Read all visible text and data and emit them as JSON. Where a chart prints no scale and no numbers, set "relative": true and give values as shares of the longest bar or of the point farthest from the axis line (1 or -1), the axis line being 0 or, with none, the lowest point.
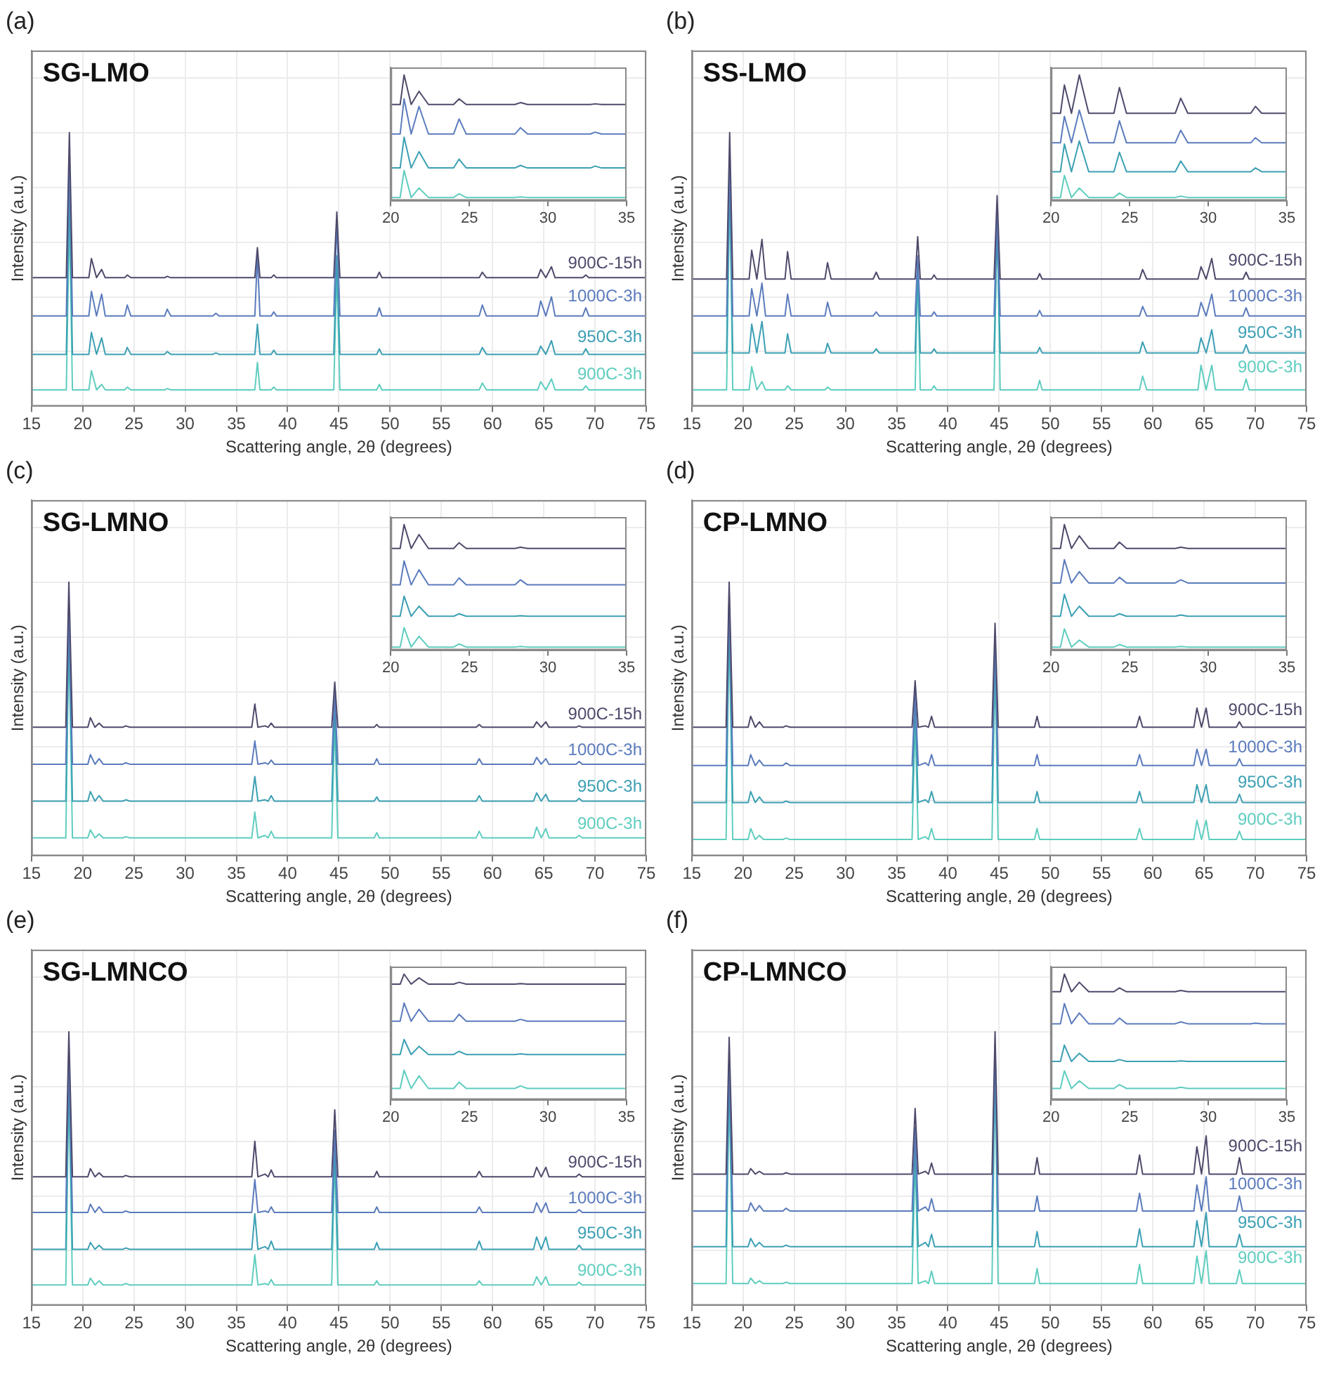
{
  "chart_data": [
    {
      "type": "line",
      "title": "(a)",
      "subtitle": "SG-LMO",
      "xlabel": "Scattering angle, 2θ (degrees)",
      "ylabel": "Intensity (a.u.)",
      "relative": true,
      "grid": true,
      "xlim": [
        15,
        75
      ],
      "xticks": [
        15,
        20,
        25,
        30,
        35,
        40,
        45,
        50,
        55,
        60,
        65,
        70,
        75
      ],
      "x": [
        15,
        18.4,
        18.7,
        19.0,
        20.6,
        20.85,
        21.35,
        21.85,
        22.2,
        24.1,
        24.35,
        24.7,
        28.0,
        28.25,
        28.6,
        32.7,
        33.0,
        33.3,
        36.8,
        37.05,
        37.3,
        38.4,
        38.65,
        38.9,
        44.5,
        44.8,
        45.1,
        48.7,
        48.95,
        49.2,
        58.7,
        59.0,
        59.4,
        64.4,
        64.7,
        65.2,
        65.75,
        66.1,
        68.8,
        69.1,
        69.4,
        75
      ],
      "series": [
        {
          "name": "900C-15h",
          "color": "#4d4a6b",
          "values": [
            0.47,
            0.47,
            1,
            0.47,
            0.47,
            0.54,
            0.47,
            0.5,
            0.47,
            0.47,
            0.48,
            0.47,
            0.47,
            0.475,
            0.47,
            0.47,
            0.47,
            0.47,
            0.47,
            0.58,
            0.47,
            0.47,
            0.48,
            0.47,
            0.47,
            0.71,
            0.47,
            0.47,
            0.49,
            0.47,
            0.47,
            0.49,
            0.47,
            0.47,
            0.5,
            0.47,
            0.51,
            0.47,
            0.47,
            0.48,
            0.47,
            0.47
          ]
        },
        {
          "name": "1000C-3h",
          "color": "#5b7bbd",
          "values": [
            0.33,
            0.33,
            0.9,
            0.33,
            0.33,
            0.42,
            0.33,
            0.41,
            0.33,
            0.33,
            0.37,
            0.33,
            0.33,
            0.355,
            0.33,
            0.33,
            0.34,
            0.33,
            0.33,
            0.55,
            0.33,
            0.33,
            0.345,
            0.33,
            0.33,
            0.68,
            0.33,
            0.33,
            0.36,
            0.33,
            0.33,
            0.37,
            0.33,
            0.33,
            0.385,
            0.33,
            0.4,
            0.33,
            0.33,
            0.36,
            0.33,
            0.33
          ]
        },
        {
          "name": "950C-3h",
          "color": "#3b9fb3",
          "values": [
            0.19,
            0.19,
            0.8,
            0.19,
            0.19,
            0.27,
            0.19,
            0.25,
            0.19,
            0.19,
            0.215,
            0.19,
            0.19,
            0.2,
            0.19,
            0.19,
            0.195,
            0.19,
            0.19,
            0.3,
            0.19,
            0.19,
            0.205,
            0.19,
            0.19,
            0.55,
            0.19,
            0.19,
            0.21,
            0.19,
            0.19,
            0.215,
            0.19,
            0.19,
            0.22,
            0.19,
            0.24,
            0.19,
            0.19,
            0.21,
            0.19,
            0.19
          ]
        },
        {
          "name": "900C-3h",
          "color": "#5fcdbf",
          "values": [
            0.06,
            0.06,
            0.7,
            0.06,
            0.06,
            0.13,
            0.06,
            0.08,
            0.06,
            0.06,
            0.07,
            0.06,
            0.06,
            0.065,
            0.06,
            0.06,
            0.06,
            0.06,
            0.06,
            0.16,
            0.06,
            0.06,
            0.07,
            0.06,
            0.06,
            0.5,
            0.06,
            0.06,
            0.08,
            0.06,
            0.06,
            0.085,
            0.06,
            0.06,
            0.09,
            0.06,
            0.1,
            0.06,
            0.06,
            0.075,
            0.06,
            0.06
          ]
        }
      ]
    },
    {
      "type": "line",
      "relative": true,
      "xlim": [
        20,
        35
      ],
      "xticks": [
        20,
        25,
        30,
        35
      ],
      "x": [
        20,
        20.6,
        20.85,
        21.3,
        21.8,
        22.4,
        24.0,
        24.35,
        24.8,
        27.9,
        28.25,
        28.7,
        32.7,
        33.0,
        33.4,
        35
      ],
      "series": [
        {
          "color": "#4d4a6b",
          "values": [
            0.765,
            0.765,
            1,
            0.765,
            0.87,
            0.765,
            0.765,
            0.81,
            0.765,
            0.765,
            0.78,
            0.765,
            0.765,
            0.77,
            0.765,
            0.765
          ]
        },
        {
          "color": "#5b7bbd",
          "values": [
            0.53,
            0.53,
            0.81,
            0.53,
            0.75,
            0.53,
            0.53,
            0.65,
            0.53,
            0.53,
            0.58,
            0.53,
            0.53,
            0.545,
            0.53,
            0.53
          ]
        },
        {
          "color": "#3b9fb3",
          "values": [
            0.26,
            0.26,
            0.505,
            0.26,
            0.39,
            0.26,
            0.26,
            0.33,
            0.26,
            0.26,
            0.28,
            0.26,
            0.26,
            0.275,
            0.26,
            0.26
          ]
        },
        {
          "color": "#5fcdbf",
          "values": [
            0.025,
            0.025,
            0.24,
            0.025,
            0.1,
            0.025,
            0.025,
            0.055,
            0.025,
            0.025,
            0.03,
            0.025,
            0.025,
            0.025,
            0.025,
            0.025
          ]
        }
      ]
    },
    {
      "type": "line",
      "title": "(b)",
      "subtitle": "SS-LMO",
      "xlabel": "Scattering angle, 2θ (degrees)",
      "ylabel": "Intensity (a.u.)",
      "relative": true,
      "grid": true,
      "xlim": [
        15,
        75
      ],
      "xticks": [
        15,
        20,
        25,
        30,
        35,
        40,
        45,
        50,
        55,
        60,
        65,
        70,
        75
      ],
      "x": [
        15,
        18.4,
        18.7,
        19.0,
        20.6,
        20.85,
        21.35,
        21.85,
        22.2,
        24.1,
        24.35,
        24.7,
        28.0,
        28.25,
        28.6,
        32.7,
        33.0,
        33.3,
        36.8,
        37.05,
        37.3,
        38.4,
        38.65,
        38.9,
        44.5,
        44.8,
        45.1,
        48.7,
        48.95,
        49.2,
        58.7,
        59.0,
        59.4,
        64.4,
        64.7,
        65.2,
        65.75,
        66.1,
        68.8,
        69.1,
        69.4,
        75
      ],
      "series": [
        {
          "name": "900C-15h",
          "color": "#4d4a6b",
          "values": [
            0.465,
            0.465,
            1,
            0.465,
            0.465,
            0.57,
            0.465,
            0.61,
            0.465,
            0.465,
            0.565,
            0.465,
            0.465,
            0.525,
            0.465,
            0.465,
            0.49,
            0.465,
            0.465,
            0.62,
            0.465,
            0.465,
            0.48,
            0.465,
            0.465,
            0.77,
            0.465,
            0.465,
            0.485,
            0.465,
            0.465,
            0.5,
            0.465,
            0.465,
            0.51,
            0.465,
            0.54,
            0.465,
            0.465,
            0.49,
            0.465,
            0.465
          ]
        },
        {
          "name": "1000C-3h",
          "color": "#5b7bbd",
          "values": [
            0.33,
            0.33,
            0.9,
            0.33,
            0.33,
            0.43,
            0.33,
            0.45,
            0.33,
            0.33,
            0.41,
            0.33,
            0.33,
            0.38,
            0.33,
            0.33,
            0.345,
            0.33,
            0.33,
            0.55,
            0.33,
            0.33,
            0.345,
            0.33,
            0.33,
            0.7,
            0.33,
            0.33,
            0.35,
            0.33,
            0.33,
            0.365,
            0.33,
            0.33,
            0.38,
            0.33,
            0.41,
            0.33,
            0.33,
            0.36,
            0.33,
            0.33
          ]
        },
        {
          "name": "950C-3h",
          "color": "#3b9fb3",
          "values": [
            0.195,
            0.195,
            0.85,
            0.195,
            0.195,
            0.3,
            0.195,
            0.31,
            0.195,
            0.195,
            0.265,
            0.195,
            0.195,
            0.23,
            0.195,
            0.195,
            0.21,
            0.195,
            0.195,
            0.5,
            0.195,
            0.195,
            0.21,
            0.195,
            0.195,
            0.65,
            0.195,
            0.195,
            0.215,
            0.195,
            0.195,
            0.235,
            0.195,
            0.195,
            0.25,
            0.195,
            0.28,
            0.195,
            0.195,
            0.225,
            0.195,
            0.195
          ]
        },
        {
          "name": "900C-3h",
          "color": "#5fcdbf",
          "values": [
            0.06,
            0.06,
            0.8,
            0.06,
            0.06,
            0.145,
            0.06,
            0.09,
            0.06,
            0.06,
            0.075,
            0.06,
            0.06,
            0.07,
            0.06,
            0.06,
            0.06,
            0.06,
            0.06,
            0.5,
            0.06,
            0.06,
            0.075,
            0.06,
            0.06,
            0.7,
            0.06,
            0.06,
            0.095,
            0.06,
            0.06,
            0.11,
            0.06,
            0.06,
            0.15,
            0.06,
            0.15,
            0.06,
            0.06,
            0.1,
            0.06,
            0.06
          ]
        }
      ]
    },
    {
      "type": "line",
      "relative": true,
      "xlim": [
        20,
        35
      ],
      "xticks": [
        20,
        25,
        30,
        35
      ],
      "x": [
        20,
        20.6,
        20.85,
        21.3,
        21.8,
        22.4,
        24.0,
        24.35,
        24.8,
        27.9,
        28.25,
        28.7,
        32.7,
        33.0,
        33.4,
        35
      ],
      "series": [
        {
          "color": "#4d4a6b",
          "values": [
            0.695,
            0.695,
            0.92,
            0.695,
            1,
            0.695,
            0.695,
            0.9,
            0.695,
            0.695,
            0.815,
            0.695,
            0.695,
            0.75,
            0.695,
            0.695
          ]
        },
        {
          "color": "#5b7bbd",
          "values": [
            0.46,
            0.46,
            0.67,
            0.46,
            0.72,
            0.46,
            0.46,
            0.635,
            0.46,
            0.46,
            0.56,
            0.46,
            0.46,
            0.5,
            0.46,
            0.46
          ]
        },
        {
          "color": "#3b9fb3",
          "values": [
            0.23,
            0.23,
            0.45,
            0.23,
            0.475,
            0.23,
            0.23,
            0.385,
            0.23,
            0.23,
            0.315,
            0.23,
            0.23,
            0.26,
            0.23,
            0.23
          ]
        },
        {
          "color": "#5fcdbf",
          "values": [
            0.025,
            0.025,
            0.2,
            0.025,
            0.1,
            0.025,
            0.025,
            0.06,
            0.025,
            0.025,
            0.035,
            0.025,
            0.025,
            0.025,
            0.025,
            0.025
          ]
        }
      ]
    },
    {
      "type": "line",
      "title": "(c)",
      "subtitle": "SG-LMNO",
      "xlabel": "Scattering angle, 2θ (degrees)",
      "ylabel": "Intensity (a.u.)",
      "relative": true,
      "grid": true,
      "xlim": [
        15,
        75
      ],
      "xticks": [
        15,
        20,
        25,
        30,
        35,
        40,
        45,
        50,
        55,
        60,
        65,
        70,
        75
      ],
      "x": [
        15,
        18.35,
        18.65,
        19.0,
        20.5,
        20.75,
        21.2,
        21.6,
        22.0,
        23.9,
        24.2,
        24.6,
        36.5,
        36.8,
        37.1,
        37.8,
        38.1,
        38.4,
        38.7,
        44.3,
        44.6,
        44.9,
        48.45,
        48.7,
        48.95,
        58.4,
        58.7,
        59.0,
        64.0,
        64.3,
        64.75,
        65.2,
        65.5,
        68.15,
        68.45,
        68.75,
        75
      ],
      "series": [
        {
          "name": "900C-15h",
          "color": "#4d4a6b",
          "values": [
            0.47,
            0.47,
            1,
            0.47,
            0.47,
            0.505,
            0.47,
            0.485,
            0.47,
            0.47,
            0.475,
            0.47,
            0.47,
            0.555,
            0.47,
            0.475,
            0.47,
            0.485,
            0.47,
            0.47,
            0.635,
            0.47,
            0.47,
            0.48,
            0.47,
            0.47,
            0.48,
            0.47,
            0.47,
            0.49,
            0.47,
            0.49,
            0.47,
            0.47,
            0.475,
            0.47,
            0.47
          ]
        },
        {
          "name": "1000C-3h",
          "color": "#5b7bbd",
          "values": [
            0.335,
            0.335,
            0.9,
            0.335,
            0.335,
            0.37,
            0.335,
            0.355,
            0.335,
            0.335,
            0.34,
            0.335,
            0.335,
            0.42,
            0.335,
            0.34,
            0.335,
            0.35,
            0.335,
            0.335,
            0.6,
            0.335,
            0.335,
            0.355,
            0.335,
            0.335,
            0.355,
            0.335,
            0.335,
            0.36,
            0.335,
            0.355,
            0.335,
            0.335,
            0.345,
            0.335,
            0.335
          ]
        },
        {
          "name": "950C-3h",
          "color": "#3b9fb3",
          "values": [
            0.2,
            0.2,
            0.85,
            0.2,
            0.2,
            0.235,
            0.2,
            0.22,
            0.2,
            0.2,
            0.205,
            0.2,
            0.2,
            0.29,
            0.2,
            0.205,
            0.2,
            0.22,
            0.2,
            0.2,
            0.55,
            0.2,
            0.2,
            0.215,
            0.2,
            0.2,
            0.22,
            0.2,
            0.2,
            0.23,
            0.2,
            0.225,
            0.2,
            0.2,
            0.21,
            0.2,
            0.2
          ]
        },
        {
          "name": "900C-3h",
          "color": "#5fcdbf",
          "values": [
            0.066,
            0.066,
            0.8,
            0.066,
            0.066,
            0.095,
            0.066,
            0.08,
            0.066,
            0.066,
            0.07,
            0.066,
            0.066,
            0.16,
            0.066,
            0.075,
            0.066,
            0.09,
            0.066,
            0.066,
            0.5,
            0.066,
            0.066,
            0.085,
            0.066,
            0.066,
            0.09,
            0.066,
            0.066,
            0.105,
            0.066,
            0.1,
            0.066,
            0.066,
            0.075,
            0.066,
            0.066
          ]
        }
      ]
    },
    {
      "type": "line",
      "relative": true,
      "xlim": [
        20,
        35
      ],
      "xticks": [
        20,
        25,
        30,
        35
      ],
      "x": [
        20,
        20.6,
        20.85,
        21.3,
        21.8,
        22.4,
        24.0,
        24.35,
        24.8,
        27.9,
        28.25,
        28.7,
        32.7,
        33.0,
        33.4,
        35
      ],
      "series": [
        {
          "color": "#4d4a6b",
          "values": [
            0.81,
            0.81,
            1,
            0.81,
            0.92,
            0.81,
            0.81,
            0.855,
            0.81,
            0.81,
            0.82,
            0.81,
            0.81,
            0.81,
            0.81,
            0.81
          ]
        },
        {
          "color": "#5b7bbd",
          "values": [
            0.52,
            0.52,
            0.71,
            0.52,
            0.64,
            0.52,
            0.52,
            0.575,
            0.52,
            0.52,
            0.56,
            0.52,
            0.52,
            0.52,
            0.52,
            0.52
          ]
        },
        {
          "color": "#3b9fb3",
          "values": [
            0.27,
            0.27,
            0.43,
            0.27,
            0.35,
            0.27,
            0.27,
            0.29,
            0.27,
            0.27,
            0.275,
            0.27,
            0.27,
            0.27,
            0.27,
            0.27
          ]
        },
        {
          "color": "#5fcdbf",
          "values": [
            0.025,
            0.025,
            0.18,
            0.025,
            0.11,
            0.025,
            0.025,
            0.05,
            0.025,
            0.025,
            0.03,
            0.025,
            0.025,
            0.025,
            0.025,
            0.025
          ]
        }
      ]
    },
    {
      "type": "line",
      "title": "(d)",
      "subtitle": "CP-LMNO",
      "xlabel": "Scattering angle, 2θ (degrees)",
      "ylabel": "Intensity (a.u.)",
      "relative": true,
      "grid": true,
      "xlim": [
        15,
        75
      ],
      "xticks": [
        15,
        20,
        25,
        30,
        35,
        40,
        45,
        50,
        55,
        60,
        65,
        70,
        75
      ],
      "x": [
        15,
        18.35,
        18.65,
        19.0,
        20.5,
        20.75,
        21.2,
        21.6,
        22.0,
        23.9,
        24.2,
        24.6,
        36.5,
        36.8,
        37.1,
        37.8,
        38.1,
        38.4,
        38.7,
        44.3,
        44.6,
        44.9,
        48.45,
        48.7,
        48.95,
        58.4,
        58.7,
        59.0,
        64.0,
        64.3,
        64.75,
        65.2,
        65.5,
        68.15,
        68.45,
        68.75,
        75
      ],
      "series": [
        {
          "name": "900C-15h",
          "color": "#4d4a6b",
          "values": [
            0.47,
            0.47,
            1,
            0.47,
            0.47,
            0.51,
            0.47,
            0.49,
            0.47,
            0.47,
            0.475,
            0.47,
            0.47,
            0.64,
            0.47,
            0.475,
            0.47,
            0.51,
            0.47,
            0.47,
            0.85,
            0.47,
            0.47,
            0.51,
            0.47,
            0.47,
            0.51,
            0.47,
            0.47,
            0.54,
            0.47,
            0.54,
            0.47,
            0.47,
            0.49,
            0.47,
            0.47
          ]
        },
        {
          "name": "1000C-3h",
          "color": "#5b7bbd",
          "values": [
            0.33,
            0.33,
            0.95,
            0.33,
            0.33,
            0.37,
            0.33,
            0.35,
            0.33,
            0.33,
            0.34,
            0.33,
            0.33,
            0.6,
            0.33,
            0.34,
            0.33,
            0.37,
            0.33,
            0.33,
            0.8,
            0.33,
            0.33,
            0.37,
            0.33,
            0.33,
            0.37,
            0.33,
            0.33,
            0.39,
            0.33,
            0.39,
            0.33,
            0.33,
            0.355,
            0.33,
            0.33
          ]
        },
        {
          "name": "950C-3h",
          "color": "#3b9fb3",
          "values": [
            0.195,
            0.195,
            0.9,
            0.195,
            0.195,
            0.235,
            0.195,
            0.215,
            0.195,
            0.195,
            0.2,
            0.195,
            0.195,
            0.55,
            0.195,
            0.205,
            0.195,
            0.235,
            0.195,
            0.195,
            0.75,
            0.195,
            0.195,
            0.235,
            0.195,
            0.195,
            0.235,
            0.195,
            0.195,
            0.26,
            0.195,
            0.26,
            0.195,
            0.195,
            0.225,
            0.195,
            0.195
          ]
        },
        {
          "name": "900C-3h",
          "color": "#5fcdbf",
          "values": [
            0.06,
            0.06,
            0.85,
            0.06,
            0.06,
            0.1,
            0.06,
            0.075,
            0.06,
            0.06,
            0.065,
            0.06,
            0.06,
            0.5,
            0.06,
            0.07,
            0.06,
            0.1,
            0.06,
            0.06,
            0.7,
            0.06,
            0.06,
            0.1,
            0.06,
            0.06,
            0.1,
            0.06,
            0.06,
            0.13,
            0.06,
            0.13,
            0.06,
            0.06,
            0.09,
            0.06,
            0.06
          ]
        }
      ]
    },
    {
      "type": "line",
      "relative": true,
      "xlim": [
        20,
        35
      ],
      "xticks": [
        20,
        25,
        30,
        35
      ],
      "x": [
        20,
        20.6,
        20.85,
        21.3,
        21.8,
        22.4,
        24.0,
        24.35,
        24.8,
        27.9,
        28.25,
        28.7,
        32.7,
        33.0,
        33.4,
        35
      ],
      "series": [
        {
          "color": "#4d4a6b",
          "values": [
            0.81,
            0.81,
            1,
            0.81,
            0.91,
            0.81,
            0.81,
            0.86,
            0.81,
            0.81,
            0.82,
            0.81,
            0.81,
            0.81,
            0.81,
            0.81
          ]
        },
        {
          "color": "#5b7bbd",
          "values": [
            0.535,
            0.535,
            0.72,
            0.535,
            0.625,
            0.535,
            0.535,
            0.58,
            0.535,
            0.535,
            0.56,
            0.535,
            0.535,
            0.535,
            0.535,
            0.535
          ]
        },
        {
          "color": "#3b9fb3",
          "values": [
            0.27,
            0.27,
            0.445,
            0.27,
            0.35,
            0.27,
            0.27,
            0.29,
            0.27,
            0.27,
            0.28,
            0.27,
            0.27,
            0.27,
            0.27,
            0.27
          ]
        },
        {
          "color": "#5fcdbf",
          "values": [
            0.025,
            0.025,
            0.17,
            0.025,
            0.08,
            0.025,
            0.025,
            0.045,
            0.025,
            0.025,
            0.03,
            0.025,
            0.025,
            0.025,
            0.025,
            0.025
          ]
        }
      ]
    },
    {
      "type": "line",
      "title": "(e)",
      "subtitle": "SG-LMNCO",
      "xlabel": "Scattering angle, 2θ (degrees)",
      "ylabel": "Intensity (a.u.)",
      "relative": true,
      "grid": true,
      "xlim": [
        15,
        75
      ],
      "xticks": [
        15,
        20,
        25,
        30,
        35,
        40,
        45,
        50,
        55,
        60,
        65,
        70,
        75
      ],
      "x": [
        15,
        18.35,
        18.65,
        19.0,
        20.5,
        20.75,
        21.2,
        21.6,
        22.0,
        23.9,
        24.2,
        24.6,
        36.5,
        36.8,
        37.1,
        37.8,
        38.1,
        38.4,
        38.7,
        44.3,
        44.6,
        44.9,
        48.45,
        48.7,
        48.95,
        58.4,
        58.7,
        59.0,
        64.0,
        64.3,
        64.75,
        65.2,
        65.5,
        68.15,
        68.45,
        68.75,
        75
      ],
      "series": [
        {
          "name": "900C-15h",
          "color": "#4d4a6b",
          "values": [
            0.47,
            0.47,
            1,
            0.47,
            0.47,
            0.5,
            0.47,
            0.485,
            0.47,
            0.47,
            0.475,
            0.47,
            0.47,
            0.6,
            0.47,
            0.48,
            0.47,
            0.495,
            0.47,
            0.47,
            0.715,
            0.47,
            0.47,
            0.49,
            0.47,
            0.47,
            0.49,
            0.47,
            0.47,
            0.505,
            0.47,
            0.505,
            0.47,
            0.47,
            0.48,
            0.47,
            0.47
          ]
        },
        {
          "name": "1000C-3h",
          "color": "#5b7bbd",
          "values": [
            0.34,
            0.34,
            0.9,
            0.34,
            0.34,
            0.37,
            0.34,
            0.36,
            0.34,
            0.34,
            0.345,
            0.34,
            0.34,
            0.46,
            0.34,
            0.345,
            0.34,
            0.36,
            0.34,
            0.34,
            0.64,
            0.34,
            0.34,
            0.36,
            0.34,
            0.34,
            0.36,
            0.34,
            0.34,
            0.375,
            0.34,
            0.375,
            0.34,
            0.34,
            0.35,
            0.34,
            0.34
          ]
        },
        {
          "name": "950C-3h",
          "color": "#3b9fb3",
          "values": [
            0.205,
            0.205,
            0.85,
            0.205,
            0.205,
            0.23,
            0.205,
            0.22,
            0.205,
            0.205,
            0.21,
            0.205,
            0.205,
            0.335,
            0.205,
            0.215,
            0.205,
            0.235,
            0.205,
            0.205,
            0.58,
            0.205,
            0.205,
            0.23,
            0.205,
            0.205,
            0.235,
            0.205,
            0.205,
            0.25,
            0.205,
            0.25,
            0.205,
            0.205,
            0.22,
            0.205,
            0.205
          ]
        },
        {
          "name": "900C-3h",
          "color": "#5fcdbf",
          "values": [
            0.075,
            0.075,
            0.8,
            0.075,
            0.075,
            0.1,
            0.075,
            0.09,
            0.075,
            0.075,
            0.08,
            0.075,
            0.075,
            0.185,
            0.075,
            0.08,
            0.075,
            0.095,
            0.075,
            0.075,
            0.55,
            0.075,
            0.075,
            0.09,
            0.075,
            0.075,
            0.09,
            0.075,
            0.075,
            0.105,
            0.075,
            0.105,
            0.075,
            0.075,
            0.085,
            0.075,
            0.075
          ]
        }
      ]
    },
    {
      "type": "line",
      "relative": true,
      "xlim": [
        20,
        35
      ],
      "xticks": [
        20,
        25,
        30,
        35
      ],
      "x": [
        20,
        20.6,
        20.85,
        21.3,
        21.8,
        22.4,
        24.0,
        24.35,
        24.8,
        27.9,
        28.25,
        28.7,
        32.7,
        33.0,
        33.4,
        35
      ],
      "series": [
        {
          "color": "#4d4a6b",
          "values": [
            0.92,
            0.92,
            1,
            0.92,
            0.97,
            0.92,
            0.92,
            0.935,
            0.92,
            0.92,
            0.925,
            0.92,
            0.92,
            0.92,
            0.92,
            0.92
          ]
        },
        {
          "color": "#5b7bbd",
          "values": [
            0.625,
            0.625,
            0.77,
            0.625,
            0.72,
            0.625,
            0.625,
            0.68,
            0.625,
            0.625,
            0.64,
            0.625,
            0.625,
            0.625,
            0.625,
            0.625
          ]
        },
        {
          "color": "#3b9fb3",
          "values": [
            0.36,
            0.36,
            0.48,
            0.36,
            0.425,
            0.36,
            0.36,
            0.385,
            0.36,
            0.36,
            0.365,
            0.36,
            0.36,
            0.36,
            0.36,
            0.36
          ]
        },
        {
          "color": "#5fcdbf",
          "values": [
            0.09,
            0.09,
            0.235,
            0.09,
            0.19,
            0.09,
            0.09,
            0.14,
            0.09,
            0.09,
            0.11,
            0.09,
            0.09,
            0.09,
            0.09,
            0.09
          ]
        }
      ]
    },
    {
      "type": "line",
      "title": "(f)",
      "subtitle": "CP-LMNCO",
      "xlabel": "Scattering angle, 2θ (degrees)",
      "ylabel": "Intensity (a.u.)",
      "relative": true,
      "grid": true,
      "xlim": [
        15,
        75
      ],
      "xticks": [
        15,
        20,
        25,
        30,
        35,
        40,
        45,
        50,
        55,
        60,
        65,
        70,
        75
      ],
      "x": [
        15,
        18.35,
        18.65,
        19.0,
        20.5,
        20.75,
        21.2,
        21.6,
        22.0,
        23.9,
        24.2,
        24.6,
        36.5,
        36.8,
        37.1,
        37.8,
        38.1,
        38.4,
        38.7,
        44.3,
        44.6,
        44.9,
        48.45,
        48.7,
        48.95,
        58.4,
        58.7,
        59.0,
        64.0,
        64.3,
        64.75,
        65.2,
        65.5,
        68.15,
        68.45,
        68.75,
        75
      ],
      "series": [
        {
          "name": "900C-15h",
          "color": "#4d4a6b",
          "values": [
            0.48,
            0.48,
            0.98,
            0.48,
            0.48,
            0.5,
            0.48,
            0.49,
            0.48,
            0.48,
            0.485,
            0.48,
            0.48,
            0.72,
            0.48,
            0.49,
            0.48,
            0.52,
            0.48,
            0.48,
            1,
            0.48,
            0.48,
            0.54,
            0.48,
            0.48,
            0.55,
            0.48,
            0.48,
            0.58,
            0.48,
            0.62,
            0.48,
            0.48,
            0.54,
            0.48,
            0.48
          ]
        },
        {
          "name": "1000C-3h",
          "color": "#5b7bbd",
          "values": [
            0.345,
            0.345,
            0.9,
            0.345,
            0.345,
            0.375,
            0.345,
            0.365,
            0.345,
            0.345,
            0.355,
            0.345,
            0.345,
            0.65,
            0.345,
            0.36,
            0.345,
            0.39,
            0.345,
            0.345,
            0.95,
            0.345,
            0.345,
            0.4,
            0.345,
            0.345,
            0.41,
            0.345,
            0.345,
            0.44,
            0.345,
            0.47,
            0.345,
            0.345,
            0.4,
            0.345,
            0.345
          ]
        },
        {
          "name": "950C-3h",
          "color": "#3b9fb3",
          "values": [
            0.215,
            0.215,
            0.85,
            0.215,
            0.215,
            0.245,
            0.215,
            0.23,
            0.215,
            0.215,
            0.22,
            0.215,
            0.215,
            0.6,
            0.215,
            0.23,
            0.215,
            0.26,
            0.215,
            0.215,
            0.9,
            0.215,
            0.215,
            0.27,
            0.215,
            0.215,
            0.28,
            0.215,
            0.215,
            0.31,
            0.215,
            0.34,
            0.215,
            0.215,
            0.26,
            0.215,
            0.215
          ]
        },
        {
          "name": "900C-3h",
          "color": "#5fcdbf",
          "values": [
            0.08,
            0.08,
            0.8,
            0.08,
            0.08,
            0.1,
            0.08,
            0.09,
            0.08,
            0.08,
            0.085,
            0.08,
            0.08,
            0.55,
            0.08,
            0.09,
            0.08,
            0.125,
            0.08,
            0.08,
            0.85,
            0.08,
            0.08,
            0.135,
            0.08,
            0.08,
            0.15,
            0.08,
            0.08,
            0.18,
            0.08,
            0.2,
            0.08,
            0.08,
            0.13,
            0.08,
            0.08
          ]
        }
      ]
    },
    {
      "type": "line",
      "relative": true,
      "xlim": [
        20,
        35
      ],
      "xticks": [
        20,
        25,
        30,
        35
      ],
      "x": [
        20,
        20.6,
        20.85,
        21.3,
        21.8,
        22.4,
        24.0,
        24.35,
        24.8,
        27.9,
        28.25,
        28.7,
        32.7,
        33.0,
        33.4,
        35
      ],
      "series": [
        {
          "color": "#4d4a6b",
          "values": [
            0.86,
            0.86,
            1,
            0.86,
            0.935,
            0.86,
            0.86,
            0.89,
            0.86,
            0.86,
            0.87,
            0.86,
            0.86,
            0.86,
            0.86,
            0.86
          ]
        },
        {
          "color": "#5b7bbd",
          "values": [
            0.605,
            0.605,
            0.765,
            0.605,
            0.69,
            0.605,
            0.605,
            0.65,
            0.605,
            0.605,
            0.62,
            0.605,
            0.605,
            0.61,
            0.605,
            0.605
          ]
        },
        {
          "color": "#3b9fb3",
          "values": [
            0.305,
            0.305,
            0.435,
            0.305,
            0.37,
            0.305,
            0.305,
            0.32,
            0.305,
            0.305,
            0.31,
            0.305,
            0.305,
            0.305,
            0.305,
            0.305
          ]
        },
        {
          "color": "#5fcdbf",
          "values": [
            0.09,
            0.09,
            0.23,
            0.09,
            0.15,
            0.09,
            0.09,
            0.12,
            0.09,
            0.09,
            0.1,
            0.09,
            0.09,
            0.09,
            0.09,
            0.09
          ]
        }
      ]
    }
  ]
}
